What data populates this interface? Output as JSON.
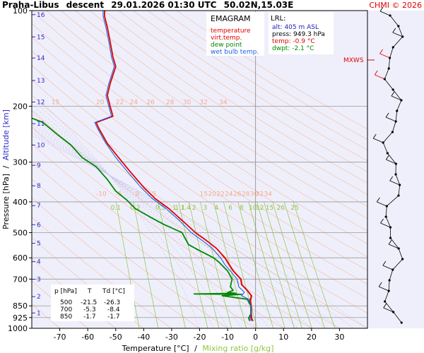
{
  "header": {
    "station": "Praha-Libus",
    "mode": "descent",
    "datetime": "29.01.2026 01:30 UTC",
    "coords": "50.02N,15.03E",
    "copyright": "CHMI © 2026"
  },
  "legend": {
    "title": "EMAGRAM",
    "items": [
      {
        "label": "temperature",
        "color": "#e00000"
      },
      {
        "label": "virt.temp.",
        "color": "#e00000"
      },
      {
        "label": "dew point",
        "color": "#008800"
      },
      {
        "label": "wet bulb temp.",
        "color": "#2060e0"
      }
    ]
  },
  "lrl": {
    "title": "LRL:",
    "alt": "alt: 405 m ASL",
    "press": "press: 949.3 hPa",
    "temp": "temp: -0.9 °C",
    "dwpt": "dwpt: -2.1 °C",
    "colors": {
      "alt": "#2020c0",
      "press": "#000000",
      "temp": "#e00000",
      "dwpt": "#008800"
    }
  },
  "mxws_label": "MXWS",
  "table": {
    "headers": [
      "p [hPa]",
      "T",
      "Td [°C]"
    ],
    "rows": [
      [
        "500",
        "-21.5",
        "-26.3"
      ],
      [
        "700",
        "-5.3",
        "-8.4"
      ],
      [
        "850",
        "-1.7",
        "-1.7"
      ]
    ]
  },
  "axes": {
    "ylabel_a": "Pressure [hPa]",
    "ylabel_sep": "/",
    "ylabel_b": "Altitude [km]",
    "xlabel_a": "Temperature [°C]",
    "xlabel_sep": "/",
    "xlabel_b": "Mixing ratio [g/kg]"
  },
  "chart_data": {
    "type": "line",
    "title": "",
    "xlabel": "Temperature [°C]",
    "ylabel": "Pressure [hPa]",
    "xlim": [
      -80,
      40
    ],
    "ylim": [
      1000,
      100
    ],
    "yscale": "log",
    "grid": true,
    "x_ticks": [
      "-70",
      "-60",
      "-50",
      "-40",
      "-30",
      "-20",
      "-10",
      "0",
      "10",
      "20",
      "30"
    ],
    "y_ticks": [
      "100",
      "200",
      "300",
      "400",
      "500",
      "600",
      "700",
      "850",
      "925",
      "1000"
    ],
    "altitude_ticks": [
      {
        "km": "1",
        "p": 895
      },
      {
        "km": "2",
        "p": 795
      },
      {
        "km": "3",
        "p": 701
      },
      {
        "km": "4",
        "p": 617
      },
      {
        "km": "5",
        "p": 540
      },
      {
        "km": "6",
        "p": 472
      },
      {
        "km": "7",
        "p": 411
      },
      {
        "km": "8",
        "p": 356
      },
      {
        "km": "9",
        "p": 307
      },
      {
        "km": "10",
        "p": 265
      },
      {
        "km": "11",
        "p": 227
      },
      {
        "km": "12",
        "p": 194
      },
      {
        "km": "13",
        "p": 166
      },
      {
        "km": "14",
        "p": 141
      },
      {
        "km": "15",
        "p": 121
      },
      {
        "km": "16",
        "p": 103
      }
    ],
    "mixing_ratio_labels": [
      "0.1",
      "0.2",
      "0.5",
      "1",
      "1.1",
      "1.4",
      "2",
      "3",
      "4",
      "6",
      "8",
      "10",
      "12",
      "15",
      "20",
      "25"
    ],
    "dry_adiabat_labels_upper": [
      "15",
      "20",
      "22",
      "24",
      "26",
      "28",
      "30",
      "32",
      "34"
    ],
    "dry_adiabat_labels_lower": [
      "-10",
      "-5",
      "0",
      "5",
      "15",
      "20",
      "22",
      "24",
      "26",
      "28",
      "30",
      "32",
      "34"
    ],
    "series": [
      {
        "name": "temperature",
        "color": "#e00000",
        "points": [
          [
            -1,
            948
          ],
          [
            -1.5,
            930
          ],
          [
            -1.7,
            900
          ],
          [
            -1.7,
            850
          ],
          [
            -2,
            820
          ],
          [
            -1.5,
            790
          ],
          [
            -3,
            760
          ],
          [
            -5,
            728
          ],
          [
            -5.3,
            700
          ],
          [
            -8,
            660
          ],
          [
            -9.5,
            630
          ],
          [
            -11,
            600
          ],
          [
            -14,
            560
          ],
          [
            -17.5,
            530
          ],
          [
            -21.5,
            500
          ],
          [
            -26,
            460
          ],
          [
            -31,
            420
          ],
          [
            -36,
            390
          ],
          [
            -40,
            360
          ],
          [
            -45,
            320
          ],
          [
            -49,
            290
          ],
          [
            -53,
            262
          ],
          [
            -56,
            235
          ],
          [
            -57,
            225
          ],
          [
            -51,
            215
          ],
          [
            -52,
            200
          ],
          [
            -53,
            185
          ],
          [
            -52,
            170
          ],
          [
            -50,
            150
          ],
          [
            -51,
            140
          ],
          [
            -52,
            125
          ],
          [
            -53,
            113
          ],
          [
            -54,
            104
          ],
          [
            -54,
            100
          ]
        ]
      },
      {
        "name": "virt.temp.",
        "color": "#e00000",
        "points": [
          [
            -0.8,
            948
          ],
          [
            -1.3,
            930
          ],
          [
            -1.4,
            900
          ],
          [
            -1.4,
            850
          ],
          [
            -1.7,
            820
          ],
          [
            -1.3,
            790
          ],
          [
            -2.8,
            760
          ],
          [
            -4.8,
            728
          ],
          [
            -5.1,
            700
          ],
          [
            -7.8,
            660
          ],
          [
            -9.3,
            630
          ],
          [
            -10.8,
            600
          ],
          [
            -13.9,
            560
          ],
          [
            -17.4,
            530
          ],
          [
            -21.4,
            500
          ],
          [
            -25.9,
            460
          ],
          [
            -31,
            420
          ],
          [
            -36,
            390
          ],
          [
            -40,
            360
          ],
          [
            -45,
            320
          ],
          [
            -49,
            290
          ],
          [
            -53,
            262
          ],
          [
            -56,
            235
          ],
          [
            -57,
            225
          ],
          [
            -51,
            215
          ],
          [
            -52,
            200
          ],
          [
            -53,
            185
          ],
          [
            -52,
            170
          ],
          [
            -50,
            150
          ],
          [
            -51,
            140
          ],
          [
            -52,
            125
          ],
          [
            -53,
            113
          ],
          [
            -54,
            104
          ],
          [
            -54,
            100
          ]
        ]
      },
      {
        "name": "dew point",
        "color": "#008800",
        "points": [
          [
            -2.1,
            948
          ],
          [
            -2.5,
            930
          ],
          [
            -1.7,
            900
          ],
          [
            -1.7,
            850
          ],
          [
            -3,
            810
          ],
          [
            -12,
            790
          ],
          [
            -5,
            782
          ],
          [
            -22,
            780
          ],
          [
            -7,
            776
          ],
          [
            -10,
            772
          ],
          [
            -8,
            760
          ],
          [
            -9,
            740
          ],
          [
            -8.4,
            700
          ],
          [
            -10,
            660
          ],
          [
            -13,
            620
          ],
          [
            -15,
            600
          ],
          [
            -20,
            570
          ],
          [
            -24,
            545
          ],
          [
            -26.3,
            500
          ],
          [
            -33,
            470
          ],
          [
            -37,
            450
          ],
          [
            -43,
            420
          ],
          [
            -46,
            395
          ],
          [
            -50,
            370
          ],
          [
            -53,
            340
          ],
          [
            -57,
            310
          ],
          [
            -62,
            290
          ],
          [
            -66,
            265
          ],
          [
            -71,
            245
          ],
          [
            -76,
            225
          ],
          [
            -80,
            218
          ]
        ]
      },
      {
        "name": "wet bulb temp.",
        "color": "#2060e0",
        "points": [
          [
            -1.5,
            948
          ],
          [
            -2,
            930
          ],
          [
            -1.7,
            900
          ],
          [
            -1.7,
            850
          ],
          [
            -2.5,
            810
          ],
          [
            -5,
            790
          ],
          [
            -4,
            770
          ],
          [
            -6,
            740
          ],
          [
            -6.6,
            700
          ],
          [
            -9,
            660
          ],
          [
            -11,
            630
          ],
          [
            -12.5,
            600
          ],
          [
            -15.5,
            560
          ],
          [
            -19,
            530
          ],
          [
            -23,
            500
          ],
          [
            -27,
            460
          ],
          [
            -32,
            420
          ],
          [
            -37,
            390
          ],
          [
            -41,
            360
          ],
          [
            -46,
            320
          ],
          [
            -50,
            290
          ],
          [
            -53.5,
            262
          ],
          [
            -56.5,
            235
          ],
          [
            -57.5,
            225
          ],
          [
            -51.5,
            215
          ],
          [
            -52.5,
            200
          ],
          [
            -53.5,
            185
          ],
          [
            -52.5,
            170
          ],
          [
            -50.5,
            150
          ],
          [
            -51.5,
            140
          ],
          [
            -52.5,
            125
          ],
          [
            -53.5,
            113
          ],
          [
            -54.5,
            104
          ],
          [
            -54.5,
            100
          ]
        ]
      }
    ]
  }
}
